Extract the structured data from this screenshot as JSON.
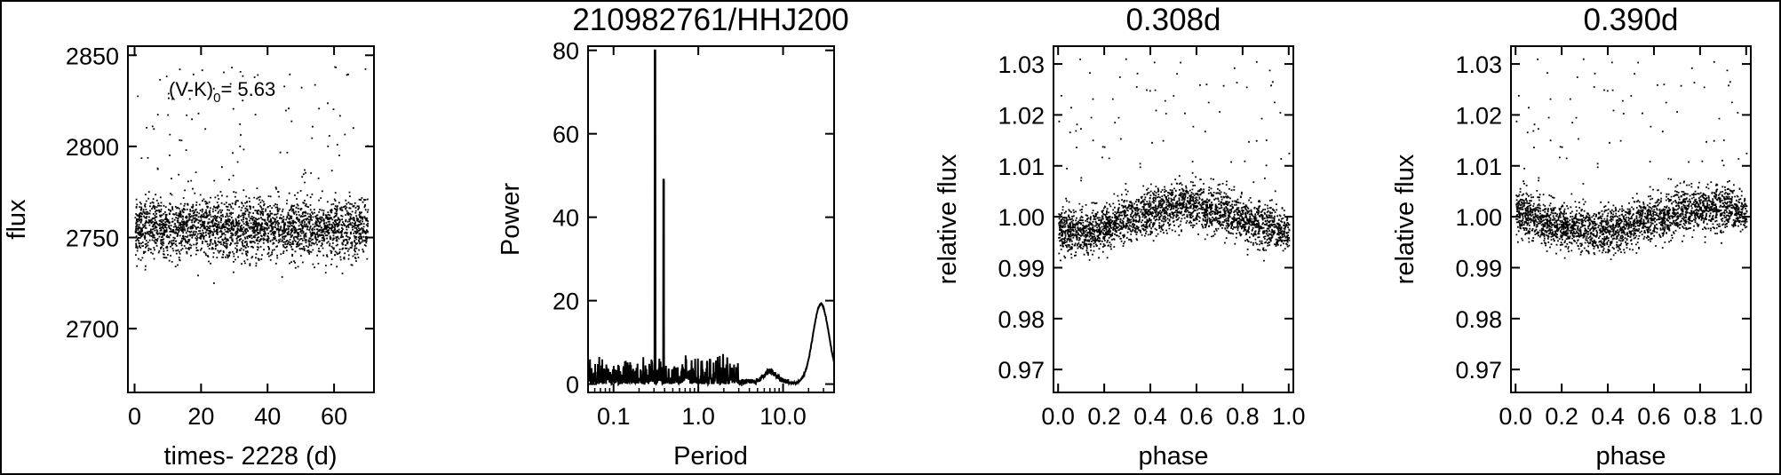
{
  "chart_data": [
    {
      "type": "scatter",
      "title": "",
      "xlabel": "times- 2228 (d)",
      "ylabel": "flux",
      "xlim": [
        -2,
        72
      ],
      "ylim": [
        2665,
        2855
      ],
      "xticks": [
        0,
        20,
        40,
        60
      ],
      "yticks": [
        2700,
        2750,
        2800,
        2850
      ],
      "annotation": {
        "prefix": "(V-K)",
        "subscript": "0",
        "suffix": "= 5.63"
      },
      "series": [
        {
          "baseline": 2755,
          "scatter_sd": 8,
          "n_points": 2800,
          "outlier_range": [
            2780,
            2845
          ]
        }
      ]
    },
    {
      "type": "line",
      "title": "210982761/HHJ200",
      "xlabel": "Period",
      "ylabel": "Power",
      "xscale": "log",
      "xlim": [
        0.05,
        40
      ],
      "ylim": [
        -2,
        81
      ],
      "xticks": [
        0.1,
        1.0,
        10.0
      ],
      "xtick_labels": [
        "0.1",
        "1.0",
        "10.0"
      ],
      "yticks": [
        0,
        20,
        40,
        60,
        80
      ],
      "peaks": [
        {
          "period": 0.308,
          "power": 80
        },
        {
          "period": 0.39,
          "power": 49
        }
      ],
      "long_period_bump": {
        "period": 28,
        "power": 19
      }
    },
    {
      "type": "scatter",
      "title": "0.308d",
      "xlabel": "phase",
      "ylabel": "relative flux",
      "xlim": [
        -0.02,
        1.02
      ],
      "ylim": [
        0.9655,
        1.0335
      ],
      "xticks": [
        0.0,
        0.2,
        0.4,
        0.6,
        0.8,
        1.0
      ],
      "xtick_labels": [
        "0.0",
        "0.2",
        "0.4",
        "0.6",
        "0.8",
        "1.0"
      ],
      "yticks": [
        0.97,
        0.98,
        0.99,
        1.0,
        1.01,
        1.02,
        1.03
      ],
      "ytick_labels": [
        "0.97",
        "0.98",
        "0.99",
        "1.00",
        "1.01",
        "1.02",
        "1.03"
      ],
      "series": [
        {
          "period_days": 0.308,
          "amplitude": 0.0025,
          "peak_phase": 0.55,
          "mean": 0.9995,
          "n_points": 2600
        }
      ]
    },
    {
      "type": "scatter",
      "title": "0.390d",
      "xlabel": "phase",
      "ylabel": "relative flux",
      "xlim": [
        -0.02,
        1.02
      ],
      "ylim": [
        0.9655,
        1.0335
      ],
      "xticks": [
        0.0,
        0.2,
        0.4,
        0.6,
        0.8,
        1.0
      ],
      "xtick_labels": [
        "0.0",
        "0.2",
        "0.4",
        "0.6",
        "0.8",
        "1.0"
      ],
      "yticks": [
        0.97,
        0.98,
        0.99,
        1.0,
        1.01,
        1.02,
        1.03
      ],
      "ytick_labels": [
        "0.97",
        "0.98",
        "0.99",
        "1.00",
        "1.01",
        "1.02",
        "1.03"
      ],
      "series": [
        {
          "period_days": 0.39,
          "amplitude": 0.0022,
          "peak_phase": 0.85,
          "mean": 0.9995,
          "n_points": 2600
        }
      ]
    }
  ]
}
